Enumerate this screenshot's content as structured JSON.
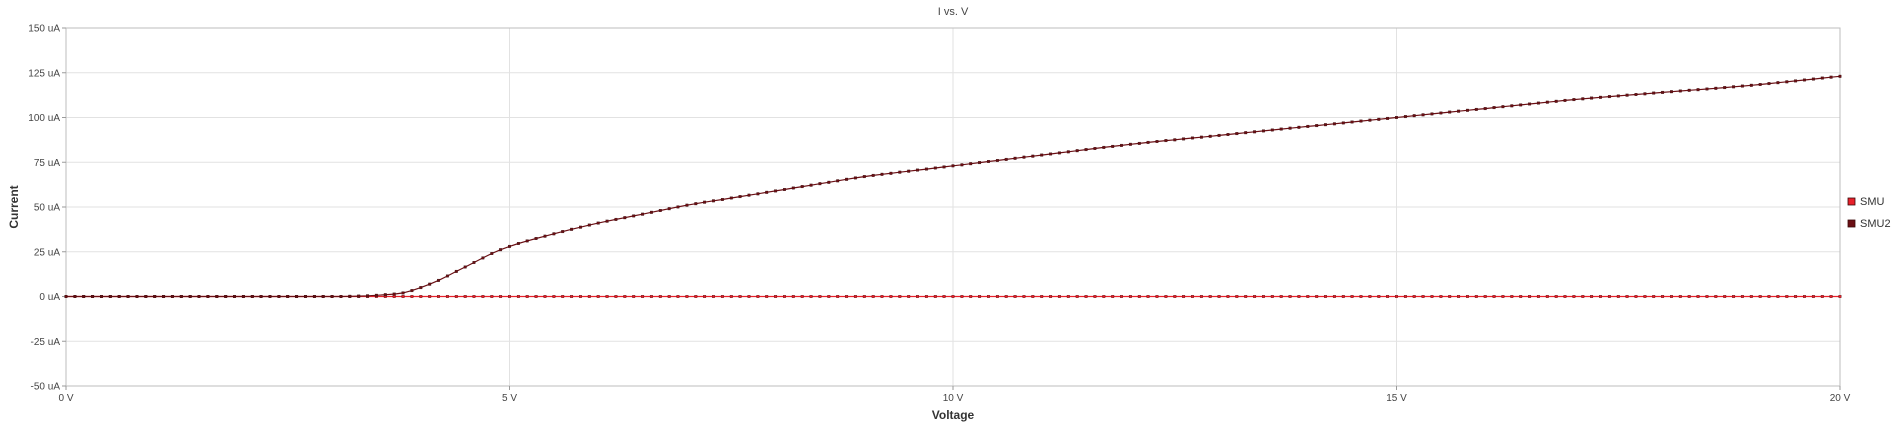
{
  "chart_data": {
    "type": "line",
    "title": "I vs. V",
    "xlabel": "Voltage",
    "ylabel": "Current",
    "xlim": [
      0,
      20
    ],
    "ylim": [
      -50,
      150
    ],
    "x_ticks": [
      {
        "value": 0,
        "label": "0 V"
      },
      {
        "value": 5,
        "label": "5 V"
      },
      {
        "value": 10,
        "label": "10 V"
      },
      {
        "value": 15,
        "label": "15 V"
      },
      {
        "value": 20,
        "label": "20 V"
      }
    ],
    "y_ticks": [
      {
        "value": -50,
        "label": "-50 uA"
      },
      {
        "value": -25,
        "label": "-25 uA"
      },
      {
        "value": 0,
        "label": "0 uA"
      },
      {
        "value": 25,
        "label": "25 uA"
      },
      {
        "value": 50,
        "label": "50 uA"
      },
      {
        "value": 75,
        "label": "75 uA"
      },
      {
        "value": 100,
        "label": "100 uA"
      },
      {
        "value": 125,
        "label": "125 uA"
      },
      {
        "value": 150,
        "label": "150 uA"
      }
    ],
    "grid": true,
    "legend_position": "right",
    "series": [
      {
        "name": "SMU",
        "color": "#e8202a",
        "x": [
          0,
          0.5,
          1,
          1.5,
          2,
          2.5,
          3,
          3.5,
          4,
          4.5,
          5,
          5.5,
          6,
          6.5,
          7,
          7.5,
          8,
          8.5,
          9,
          9.5,
          10,
          10.5,
          11,
          11.5,
          12,
          12.5,
          13,
          13.5,
          14,
          14.5,
          15,
          15.5,
          16,
          16.5,
          17,
          17.5,
          18,
          18.5,
          19,
          19.5,
          20
        ],
        "y": [
          0,
          0,
          0,
          0,
          0,
          0,
          0,
          0,
          0,
          0,
          0,
          0,
          0,
          0,
          0,
          0,
          0,
          0,
          0,
          0,
          0,
          0,
          0,
          0,
          0,
          0,
          0,
          0,
          0,
          0,
          0,
          0,
          0,
          0,
          0,
          0,
          0,
          0,
          0,
          0,
          0
        ]
      },
      {
        "name": "SMU2",
        "color": "#6b0f14",
        "x": [
          0,
          1,
          2,
          3,
          3.2,
          3.4,
          3.6,
          3.8,
          4,
          4.2,
          4.4,
          4.6,
          4.8,
          5,
          5.5,
          6,
          6.5,
          7,
          7.5,
          8,
          8.5,
          9,
          9.5,
          10,
          11,
          12,
          13,
          14,
          15,
          16,
          17,
          18,
          19,
          20
        ],
        "y": [
          0,
          0,
          0,
          0,
          0.1,
          0.4,
          1,
          2,
          5,
          9,
          14,
          19,
          24,
          28,
          35,
          41,
          46,
          51,
          55,
          59,
          63,
          67,
          70,
          73,
          79,
          85,
          90,
          95,
          100,
          105,
          110,
          114,
          118,
          123
        ]
      }
    ]
  }
}
